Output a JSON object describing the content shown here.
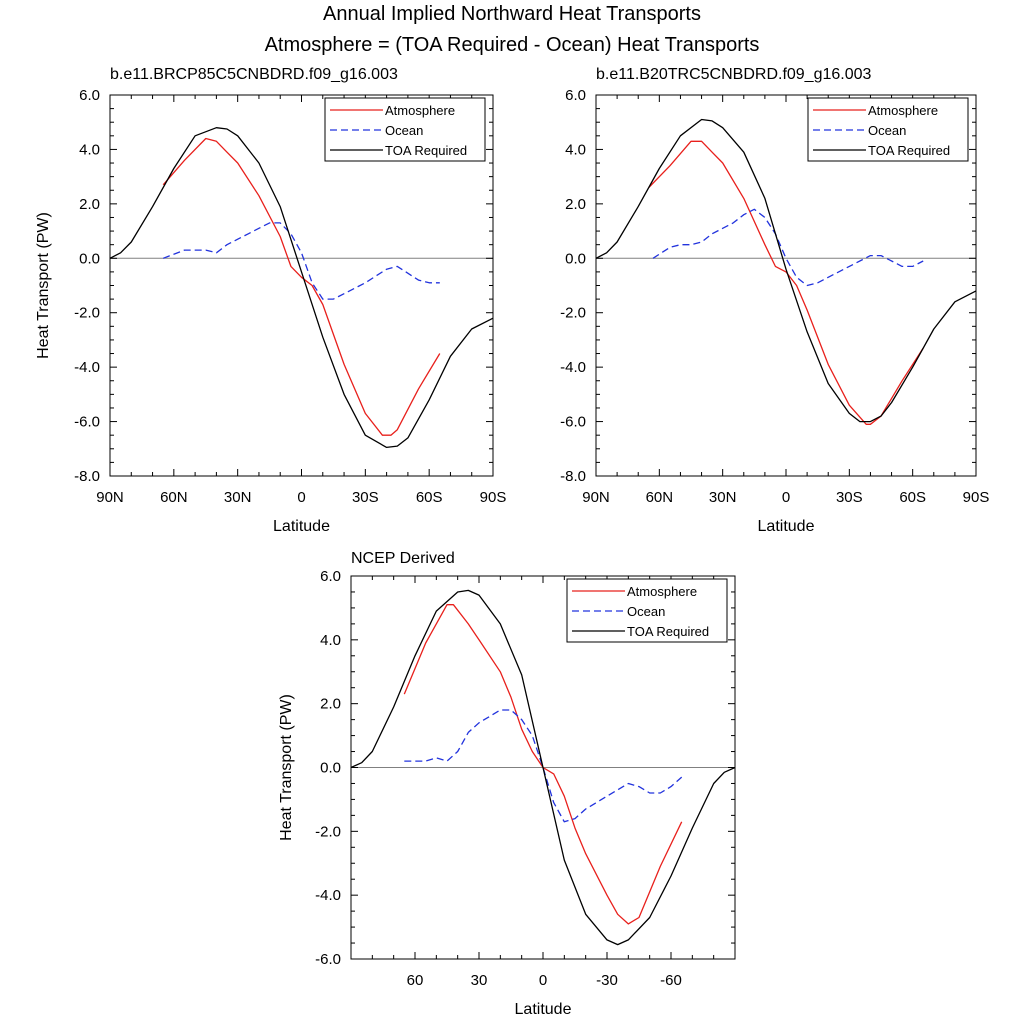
{
  "title": "Annual Implied Northward Heat Transports",
  "subtitle": "Atmosphere = (TOA Required - Ocean) Heat Transports",
  "colors": {
    "atmosphere": "#e8201c",
    "ocean": "#2233dd",
    "toa": "#000000",
    "zero_line": "#808080"
  },
  "chart_data": [
    {
      "type": "line",
      "title": "b.e11.BRCP85C5CNBDRD.f09_g16.003",
      "xlabel": "Latitude",
      "ylabel": "Heat Transport (PW)",
      "xlim": [
        90,
        -90
      ],
      "ylim": [
        -8,
        6
      ],
      "yticks": [
        -8,
        -6,
        -4,
        -2,
        0,
        2,
        4,
        6
      ],
      "ytick_labels": [
        "-8.0",
        "-6.0",
        "-4.0",
        "-2.0",
        "0.0",
        "2.0",
        "4.0",
        "6.0"
      ],
      "xticks": [
        90,
        60,
        30,
        0,
        -30,
        -60,
        -90
      ],
      "xtick_labels": [
        "90N",
        "60N",
        "30N",
        "0",
        "30S",
        "60S",
        "90S"
      ],
      "legend": "top-right",
      "series": [
        {
          "name": "Atmosphere",
          "style": "solid",
          "color": "#e8201c",
          "x": [
            65,
            55,
            45,
            40,
            35,
            30,
            20,
            10,
            5,
            0,
            -5,
            -10,
            -20,
            -30,
            -38,
            -42,
            -45,
            -55,
            -65
          ],
          "y": [
            2.7,
            3.6,
            4.4,
            4.3,
            3.9,
            3.5,
            2.3,
            0.8,
            -0.3,
            -0.7,
            -1.0,
            -1.7,
            -3.9,
            -5.7,
            -6.5,
            -6.5,
            -6.3,
            -4.8,
            -3.5
          ]
        },
        {
          "name": "Ocean",
          "style": "dashed",
          "color": "#2233dd",
          "x": [
            65,
            55,
            50,
            45,
            40,
            35,
            30,
            25,
            20,
            15,
            10,
            5,
            0,
            -5,
            -10,
            -15,
            -20,
            -30,
            -40,
            -45,
            -55,
            -60,
            -65
          ],
          "y": [
            0.0,
            0.3,
            0.3,
            0.3,
            0.2,
            0.5,
            0.7,
            0.9,
            1.1,
            1.3,
            1.3,
            0.9,
            0.2,
            -0.9,
            -1.5,
            -1.5,
            -1.3,
            -0.9,
            -0.4,
            -0.3,
            -0.8,
            -0.9,
            -0.9
          ]
        },
        {
          "name": "TOA Required",
          "style": "solid",
          "color": "#000000",
          "x": [
            90,
            85,
            80,
            70,
            60,
            50,
            40,
            35,
            30,
            20,
            10,
            0,
            -10,
            -20,
            -30,
            -40,
            -45,
            -50,
            -60,
            -70,
            -80,
            -90
          ],
          "y": [
            0.0,
            0.2,
            0.6,
            1.9,
            3.3,
            4.5,
            4.8,
            4.75,
            4.5,
            3.5,
            1.9,
            -0.5,
            -2.9,
            -5.0,
            -6.5,
            -6.95,
            -6.9,
            -6.6,
            -5.2,
            -3.6,
            -2.6,
            -2.2
          ]
        }
      ]
    },
    {
      "type": "line",
      "title": "b.e11.B20TRC5CNBDRD.f09_g16.003",
      "xlabel": "Latitude",
      "ylabel": "",
      "xlim": [
        90,
        -90
      ],
      "ylim": [
        -8,
        6
      ],
      "yticks": [
        -8,
        -6,
        -4,
        -2,
        0,
        2,
        4,
        6
      ],
      "ytick_labels": [
        "-8.0",
        "-6.0",
        "-4.0",
        "-2.0",
        "0.0",
        "2.0",
        "4.0",
        "6.0"
      ],
      "xticks": [
        90,
        60,
        30,
        0,
        -30,
        -60,
        -90
      ],
      "xtick_labels": [
        "90N",
        "60N",
        "30N",
        "0",
        "30S",
        "60S",
        "90S"
      ],
      "legend": "top-right",
      "series": [
        {
          "name": "Atmosphere",
          "style": "solid",
          "color": "#e8201c",
          "x": [
            65,
            55,
            45,
            40,
            35,
            30,
            20,
            10,
            5,
            0,
            -5,
            -10,
            -20,
            -30,
            -38,
            -40,
            -45,
            -55,
            -65
          ],
          "y": [
            2.6,
            3.4,
            4.3,
            4.3,
            3.9,
            3.5,
            2.2,
            0.5,
            -0.3,
            -0.5,
            -1.0,
            -1.9,
            -3.9,
            -5.4,
            -6.1,
            -6.1,
            -5.8,
            -4.5,
            -3.3
          ]
        },
        {
          "name": "Ocean",
          "style": "dashed",
          "color": "#2233dd",
          "x": [
            63,
            55,
            50,
            45,
            40,
            35,
            30,
            25,
            20,
            15,
            10,
            5,
            0,
            -5,
            -10,
            -15,
            -20,
            -30,
            -40,
            -45,
            -50,
            -55,
            -60,
            -65
          ],
          "y": [
            0.0,
            0.4,
            0.5,
            0.5,
            0.6,
            0.9,
            1.1,
            1.3,
            1.6,
            1.8,
            1.5,
            0.9,
            0.0,
            -0.7,
            -1.0,
            -0.9,
            -0.7,
            -0.3,
            0.1,
            0.1,
            -0.1,
            -0.3,
            -0.3,
            -0.1
          ]
        },
        {
          "name": "TOA Required",
          "style": "solid",
          "color": "#000000",
          "x": [
            90,
            85,
            80,
            70,
            60,
            50,
            40,
            35,
            30,
            20,
            10,
            0,
            -10,
            -20,
            -30,
            -35,
            -40,
            -45,
            -50,
            -60,
            -70,
            -80,
            -90
          ],
          "y": [
            0.0,
            0.2,
            0.6,
            1.9,
            3.3,
            4.5,
            5.1,
            5.05,
            4.8,
            3.9,
            2.2,
            -0.4,
            -2.7,
            -4.6,
            -5.7,
            -6.0,
            -6.0,
            -5.8,
            -5.3,
            -4.0,
            -2.6,
            -1.6,
            -1.2
          ]
        }
      ]
    },
    {
      "type": "line",
      "title": "NCEP Derived",
      "xlabel": "Latitude",
      "ylabel": "Heat Transport (PW)",
      "xlim": [
        90,
        -90
      ],
      "ylim": [
        -6,
        6
      ],
      "yticks": [
        -6,
        -4,
        -2,
        0,
        2,
        4,
        6
      ],
      "ytick_labels": [
        "-6.0",
        "-4.0",
        "-2.0",
        "0.0",
        "2.0",
        "4.0",
        "6.0"
      ],
      "xticks": [
        60,
        30,
        0,
        -30,
        -60
      ],
      "xtick_labels": [
        "60",
        "30",
        "0",
        "-30",
        "-60"
      ],
      "legend": "top-right",
      "series": [
        {
          "name": "Atmosphere",
          "style": "solid",
          "color": "#e8201c",
          "x": [
            65,
            55,
            45,
            42,
            35,
            30,
            20,
            15,
            10,
            5,
            0,
            -5,
            -10,
            -15,
            -20,
            -30,
            -35,
            -40,
            -45,
            -55,
            -65
          ],
          "y": [
            2.3,
            3.9,
            5.1,
            5.1,
            4.5,
            4.0,
            3.0,
            2.2,
            1.2,
            0.5,
            0.0,
            -0.2,
            -0.9,
            -1.9,
            -2.7,
            -4.0,
            -4.6,
            -4.9,
            -4.7,
            -3.1,
            -1.7
          ]
        },
        {
          "name": "Ocean",
          "style": "dashed",
          "color": "#2233dd",
          "x": [
            65,
            55,
            50,
            45,
            40,
            35,
            30,
            25,
            20,
            15,
            10,
            5,
            0,
            -5,
            -10,
            -15,
            -20,
            -30,
            -40,
            -45,
            -50,
            -55,
            -60,
            -65
          ],
          "y": [
            0.2,
            0.2,
            0.3,
            0.2,
            0.5,
            1.1,
            1.4,
            1.6,
            1.8,
            1.8,
            1.5,
            1.0,
            0.0,
            -1.1,
            -1.7,
            -1.6,
            -1.3,
            -0.9,
            -0.5,
            -0.6,
            -0.8,
            -0.8,
            -0.6,
            -0.3
          ]
        },
        {
          "name": "TOA Required",
          "style": "solid",
          "color": "#000000",
          "x": [
            90,
            85,
            80,
            70,
            60,
            50,
            40,
            35,
            30,
            20,
            10,
            0,
            -10,
            -20,
            -30,
            -35,
            -40,
            -50,
            -60,
            -70,
            -80,
            -85,
            -90
          ],
          "y": [
            0.0,
            0.15,
            0.5,
            1.9,
            3.5,
            4.9,
            5.5,
            5.55,
            5.4,
            4.5,
            2.9,
            0.0,
            -2.9,
            -4.6,
            -5.4,
            -5.55,
            -5.4,
            -4.7,
            -3.4,
            -1.9,
            -0.5,
            -0.15,
            0.0
          ]
        }
      ]
    }
  ]
}
